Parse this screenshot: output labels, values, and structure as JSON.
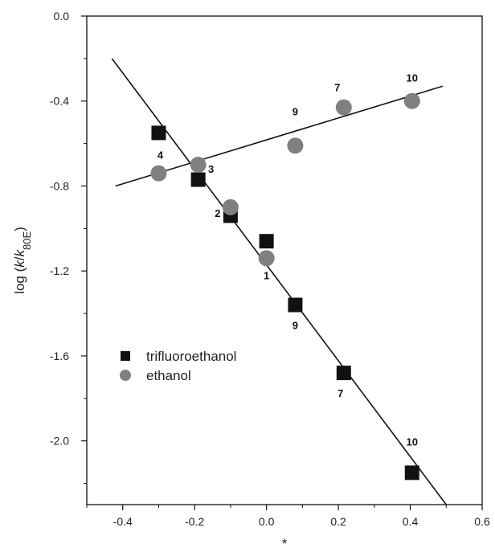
{
  "chart_data": {
    "type": "scatter",
    "title": "",
    "xlabel": "*",
    "ylabel": "log (k/k80E)",
    "xlim": [
      -0.5,
      0.6
    ],
    "ylim": [
      -2.3,
      0.0
    ],
    "x_ticks": [
      "-0.4",
      "-0.2",
      "0.0",
      "0.2",
      "0.4",
      "0.6"
    ],
    "y_ticks": [
      "0.0",
      "-0.4",
      "-0.8",
      "-1.2",
      "-1.6",
      "-2.0"
    ],
    "legend_position": "lower-left",
    "series": [
      {
        "name": "trifluoroethanol",
        "marker": "square",
        "color": "#111111",
        "points": [
          {
            "x": -0.3,
            "y": -0.55,
            "label": ""
          },
          {
            "x": -0.19,
            "y": -0.77,
            "label": ""
          },
          {
            "x": -0.1,
            "y": -0.94,
            "label": ""
          },
          {
            "x": 0.0,
            "y": -1.06,
            "label": ""
          },
          {
            "x": 0.08,
            "y": -1.36,
            "label": "9"
          },
          {
            "x": 0.215,
            "y": -1.68,
            "label": "7"
          },
          {
            "x": 0.405,
            "y": -2.15,
            "label": "10"
          }
        ],
        "fit_line": {
          "x_start": -0.43,
          "y_start": -0.2,
          "x_end": 0.5,
          "y_end": -2.3
        }
      },
      {
        "name": "ethanol",
        "marker": "circle",
        "color": "#808080",
        "points": [
          {
            "x": -0.3,
            "y": -0.74,
            "label": "4"
          },
          {
            "x": -0.19,
            "y": -0.7,
            "label": "3"
          },
          {
            "x": -0.1,
            "y": -0.9,
            "label": "2"
          },
          {
            "x": 0.0,
            "y": -1.14,
            "label": "1"
          },
          {
            "x": 0.08,
            "y": -0.61,
            "label": "9"
          },
          {
            "x": 0.215,
            "y": -0.43,
            "label": "7"
          },
          {
            "x": 0.405,
            "y": -0.4,
            "label": "10"
          }
        ],
        "fit_line": {
          "x_start": -0.42,
          "y_start": -0.8,
          "x_end": 0.49,
          "y_end": -0.33
        }
      }
    ]
  }
}
